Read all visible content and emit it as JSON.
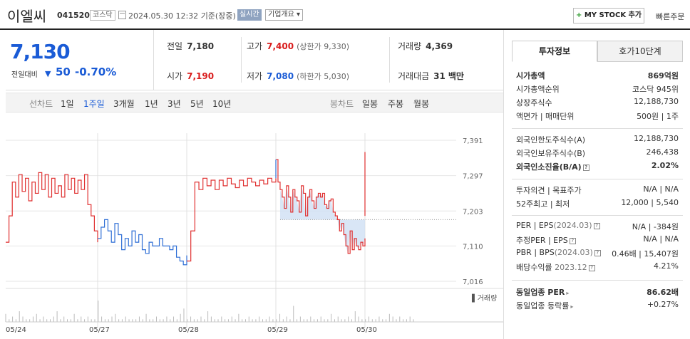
{
  "header": {
    "stock_name": "이엘씨",
    "code": "041520",
    "market": "코스닥",
    "datetime": "2024.05.30 12:32",
    "basis": "기준(장중)",
    "realtime_badge": "실시간",
    "overview_button": "기업개요",
    "mystock_button": "MY STOCK 추가",
    "quick_order": "빠른주문"
  },
  "price": {
    "current": "7,130",
    "change_label": "전일대비",
    "change": "50",
    "change_pct": "-0.70%",
    "direction": "down"
  },
  "stats": {
    "prev_label": "전일",
    "prev": "7,180",
    "high_label": "고가",
    "high": "7,400",
    "upper_limit": "(상한가 9,330)",
    "volume_label": "거래량",
    "volume": "4,369",
    "open_label": "시가",
    "open": "7,190",
    "low_label": "저가",
    "low": "7,080",
    "lower_limit": "(하한가 5,030)",
    "amount_label": "거래대금",
    "amount": "31",
    "amount_unit": "백만"
  },
  "period_bar": {
    "line_label": "선차트",
    "line_options": [
      "1일",
      "1주일",
      "3개월",
      "1년",
      "3년",
      "5년",
      "10년"
    ],
    "line_selected": "1주일",
    "candle_label": "봉차트",
    "candle_options": [
      "일봉",
      "주봉",
      "월봉"
    ]
  },
  "chart_data": {
    "type": "line",
    "x_ticks": [
      "05/24",
      "05/27",
      "05/28",
      "05/29",
      "05/30"
    ],
    "y_ticks": [
      "7,391",
      "7,297",
      "7,203",
      "7,110",
      "7,016"
    ],
    "ylim": [
      7016,
      7391
    ],
    "reference_price": 7180,
    "volume_label": "거래량",
    "colors": {
      "up": "#e03030",
      "down": "#2f6fd6",
      "fill": "#cfe0f4"
    },
    "series": [
      {
        "values": [
          7120,
          7190,
          7280,
          7240,
          7300,
          7255,
          7290,
          7230,
          7280,
          7250,
          7305,
          7260,
          7300,
          7240,
          7290,
          7250,
          7270,
          7240,
          7300,
          7260,
          7290,
          7250,
          7285,
          7260,
          7300,
          7220,
          7190,
          7150,
          7120
        ]
      },
      {
        "values": [
          7130,
          7160,
          7180,
          7150,
          7120,
          7170,
          7140,
          7100,
          7130,
          7110,
          7150,
          7120,
          7140,
          7100,
          7090,
          7120,
          7110,
          7110,
          7130,
          7110,
          7110,
          7100,
          7110,
          7080,
          7070,
          7060,
          7085
        ]
      },
      {
        "values": [
          7070,
          7150,
          7280,
          7260,
          7290,
          7270,
          7285,
          7260,
          7285,
          7270,
          7290,
          7275,
          7265,
          7285,
          7270,
          7290,
          7280,
          7270,
          7285,
          7275,
          7290,
          7280,
          7290
        ]
      },
      {
        "values": [
          7340,
          7280,
          7260,
          7240,
          7210,
          7270,
          7240,
          7200,
          7260,
          7240,
          7230,
          7200,
          7270,
          7250,
          7190,
          7240,
          7260,
          7230,
          7210,
          7240,
          7250,
          7240,
          7250,
          7220,
          7210,
          7230,
          7235,
          7200,
          7190,
          7180,
          7150,
          7170,
          7140,
          7110,
          7090,
          7150,
          7100,
          7130,
          7110,
          7100,
          7120,
          7110,
          7130
        ]
      }
    ],
    "volumes": [
      3,
      1,
      2,
      1,
      4,
      2,
      1,
      1,
      2,
      3,
      1,
      2,
      1,
      1,
      2,
      4,
      1,
      2,
      1,
      1,
      3,
      1,
      2,
      1,
      2,
      1,
      1,
      8,
      2,
      1,
      1,
      2,
      3,
      1,
      1,
      2,
      1,
      1,
      1,
      2,
      1,
      3,
      1,
      1,
      2,
      1,
      1,
      2,
      1,
      2,
      1,
      3,
      5,
      1,
      2,
      1,
      1,
      2,
      1,
      4,
      2,
      1,
      1,
      2,
      1,
      1,
      2,
      1,
      3,
      1,
      1,
      2,
      1,
      1,
      2,
      1,
      1,
      2,
      1,
      1,
      3,
      1,
      2,
      1,
      6,
      1,
      2,
      1,
      1,
      2,
      1,
      1,
      2,
      1,
      1,
      3,
      1,
      2,
      1,
      1,
      2,
      1,
      4,
      2,
      1,
      1,
      2,
      1,
      1,
      2,
      1,
      1,
      3,
      2,
      1,
      2,
      1,
      1,
      2,
      1
    ]
  },
  "tabs": {
    "invest_info": "투자정보",
    "order_book": "호가10단계"
  },
  "info": {
    "market_cap_label": "시가총액",
    "market_cap": "869억원",
    "rank_label": "시가총액순위",
    "rank": "코스닥 945위",
    "shares_label": "상장주식수",
    "shares": "12,188,730",
    "par_label": "액면가 | 매매단위",
    "par": "500원 | 1주",
    "foreign_limit_label": "외국인한도주식수(A)",
    "foreign_limit": "12,188,730",
    "foreign_hold_label": "외국인보유주식수(B)",
    "foreign_hold": "246,438",
    "foreign_ratio_label": "외국인소진율(B/A)",
    "foreign_ratio": "2.02%",
    "opinion_label": "투자의견 | 목표주가",
    "opinion": "N/A | N/A",
    "week52_label": "52주최고 | 최저",
    "week52": "12,000 | 5,540",
    "per_label": "PER | EPS",
    "per_date": "(2024.03)",
    "per": "N/A | -384원",
    "est_label": "추정PER | EPS",
    "est": "N/A | N/A",
    "pbr_label": "PBR | BPS",
    "pbr_date": "(2024.03)",
    "pbr": "0.46배 | 15,407원",
    "div_label": "배당수익률",
    "div_date": "2023.12",
    "div": "4.21%",
    "sector_per_label": "동일업종 PER",
    "sector_per": "86.62배",
    "sector_rate_label": "동일업종 등락률",
    "sector_rate": "+0.27%"
  }
}
